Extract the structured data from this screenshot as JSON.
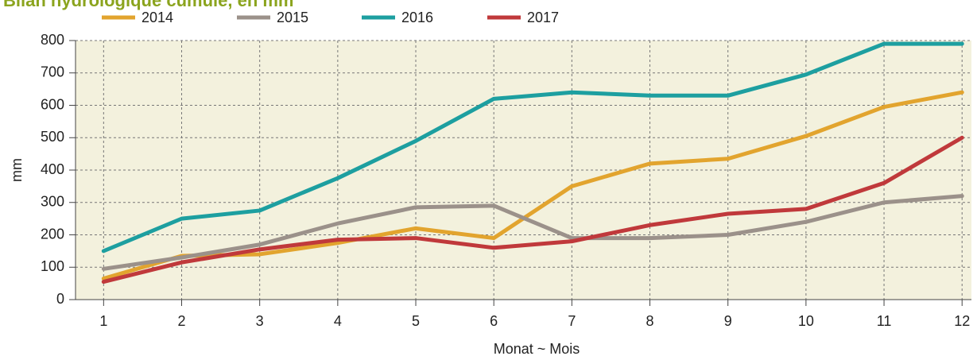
{
  "chart_data": {
    "type": "line",
    "title": "Bilan hydrologique cumulé, en mm",
    "xlabel": "Monat  ~  Mois",
    "ylabel": "mm",
    "x": [
      1,
      2,
      3,
      4,
      5,
      6,
      7,
      8,
      9,
      10,
      11,
      12
    ],
    "series": [
      {
        "name": "2014",
        "color": "#e2a42e",
        "values": [
          65,
          135,
          140,
          175,
          220,
          190,
          350,
          420,
          435,
          505,
          595,
          640
        ]
      },
      {
        "name": "2015",
        "color": "#9b918a",
        "values": [
          95,
          130,
          170,
          235,
          285,
          290,
          190,
          190,
          200,
          240,
          300,
          320
        ]
      },
      {
        "name": "2016",
        "color": "#1d9fa0",
        "values": [
          150,
          250,
          275,
          375,
          490,
          620,
          640,
          630,
          630,
          695,
          790,
          790
        ]
      },
      {
        "name": "2017",
        "color": "#c0393b",
        "values": [
          55,
          115,
          155,
          185,
          190,
          160,
          180,
          230,
          265,
          280,
          360,
          500
        ]
      }
    ],
    "xlim": [
      0.64,
      12.12
    ],
    "xticks": [
      1,
      2,
      3,
      4,
      5,
      6,
      7,
      8,
      9,
      10,
      11,
      12
    ],
    "ylim": [
      0,
      800
    ],
    "yticks": [
      0,
      100,
      200,
      300,
      400,
      500,
      600,
      700,
      800
    ],
    "grid": true,
    "legend": "top"
  }
}
